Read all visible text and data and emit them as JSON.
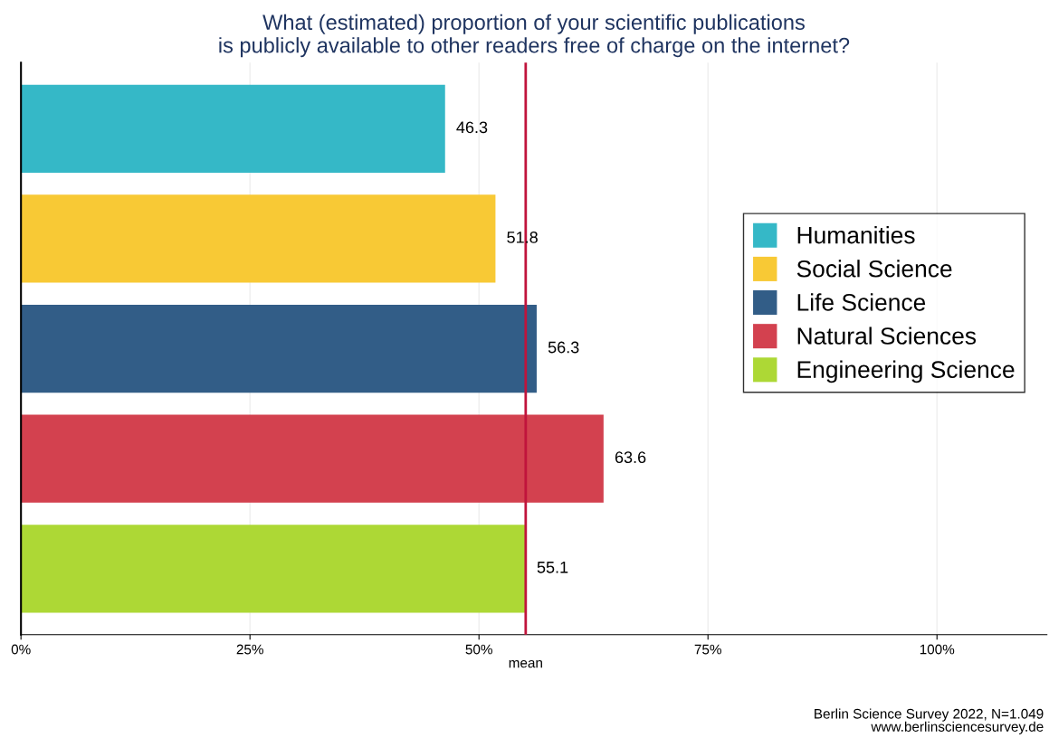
{
  "chart_data": {
    "type": "bar",
    "orientation": "horizontal",
    "title": "What (estimated) proportion of your scientific publications\nis publicly available to other readers free of charge on the internet?",
    "categories": [
      null,
      null,
      null,
      null,
      null
    ],
    "series": [
      {
        "name": "Humanities",
        "color": "#35b8c7",
        "values": [
          46.3,
          null,
          null,
          null,
          null
        ]
      },
      {
        "name": "Social Science",
        "color": "#f8c935",
        "values": [
          null,
          51.8,
          null,
          null,
          null
        ]
      },
      {
        "name": "Life Science",
        "color": "#325d87",
        "values": [
          null,
          null,
          56.3,
          null,
          null
        ]
      },
      {
        "name": "Natural Sciences",
        "color": "#d3414f",
        "values": [
          null,
          null,
          null,
          63.6,
          null
        ]
      },
      {
        "name": "Engineering Science",
        "color": "#add835",
        "values": [
          null,
          null,
          null,
          null,
          55.1
        ]
      }
    ],
    "xlim": [
      0,
      112
    ],
    "xticks": [
      {
        "value": 0,
        "label": "0%"
      },
      {
        "value": 25,
        "label": "25%"
      },
      {
        "value": 50,
        "label": "50%"
      },
      {
        "value": 75,
        "label": "75%"
      },
      {
        "value": 100,
        "label": "100%"
      }
    ],
    "ref_lines": [
      {
        "axis": "x",
        "value": 55.1,
        "label": "mean",
        "color": "#c0143c"
      }
    ],
    "data_labels": true,
    "grid": "x",
    "legend": "right",
    "tick_labels": "x",
    "annotations": [
      "Berlin Science Survey 2022, N=1.049\nwww.berlinsciencesurvey.de"
    ]
  }
}
